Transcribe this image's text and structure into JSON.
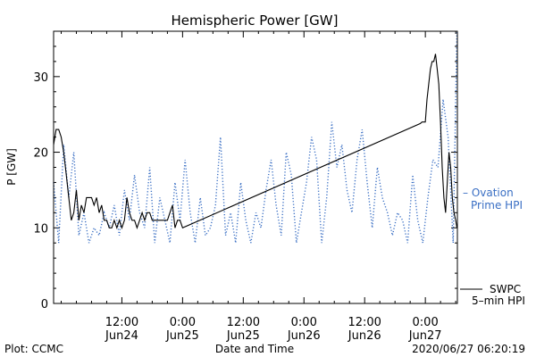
{
  "chart_data": {
    "type": "line",
    "title": "Hemispheric Power [GW]",
    "ylabel": "P [GW]",
    "xlabel": "Date and Time",
    "ylim": [
      0,
      36
    ],
    "xlim": [
      "2020-06-23T22:30",
      "2020-06-27T06:20"
    ],
    "y_ticks": [
      0,
      10,
      20,
      30
    ],
    "x_ticks": [
      {
        "t": "2020-06-24T12:00",
        "time": "12:00",
        "date": "Jun24"
      },
      {
        "t": "2020-06-25T00:00",
        "time": "0:00",
        "date": "Jun25"
      },
      {
        "t": "2020-06-25T12:00",
        "time": "12:00",
        "date": "Jun25"
      },
      {
        "t": "2020-06-26T00:00",
        "time": "0:00",
        "date": "Jun26"
      },
      {
        "t": "2020-06-26T12:00",
        "time": "12:00",
        "date": "Jun26"
      },
      {
        "t": "2020-06-27T00:00",
        "time": "0:00",
        "date": "Jun27"
      }
    ],
    "grid": false,
    "series": [
      {
        "name": "SWPC 5-min HPI",
        "label_lines": [
          "SWPC",
          "5–min HPI"
        ],
        "color": "#000000",
        "style": "solid",
        "x": [
          "2020-06-23T22:30",
          "2020-06-23T23:00",
          "2020-06-23T23:30",
          "2020-06-24T00:00",
          "2020-06-24T00:30",
          "2020-06-24T01:00",
          "2020-06-24T01:30",
          "2020-06-24T02:00",
          "2020-06-24T02:30",
          "2020-06-24T03:00",
          "2020-06-24T03:30",
          "2020-06-24T04:00",
          "2020-06-24T04:30",
          "2020-06-24T05:00",
          "2020-06-24T05:30",
          "2020-06-24T06:00",
          "2020-06-24T06:30",
          "2020-06-24T07:00",
          "2020-06-24T07:30",
          "2020-06-24T08:00",
          "2020-06-24T08:30",
          "2020-06-24T09:00",
          "2020-06-24T09:30",
          "2020-06-24T10:00",
          "2020-06-24T10:30",
          "2020-06-24T11:00",
          "2020-06-24T11:30",
          "2020-06-24T12:00",
          "2020-06-24T12:30",
          "2020-06-24T13:00",
          "2020-06-24T13:30",
          "2020-06-24T14:00",
          "2020-06-24T14:30",
          "2020-06-24T15:00",
          "2020-06-24T15:30",
          "2020-06-24T16:00",
          "2020-06-24T16:30",
          "2020-06-24T17:00",
          "2020-06-24T17:30",
          "2020-06-24T18:00",
          "2020-06-24T18:30",
          "2020-06-24T19:00",
          "2020-06-24T19:30",
          "2020-06-24T20:00",
          "2020-06-24T20:30",
          "2020-06-24T21:00",
          "2020-06-24T21:30",
          "2020-06-24T22:00",
          "2020-06-24T22:30",
          "2020-06-24T23:00",
          "2020-06-24T23:30",
          "2020-06-25T00:00",
          "2020-06-26T23:00",
          "2020-06-26T23:20",
          "2020-06-26T23:40",
          "2020-06-27T00:00",
          "2020-06-27T00:20",
          "2020-06-27T00:40",
          "2020-06-27T01:00",
          "2020-06-27T01:20",
          "2020-06-27T01:40",
          "2020-06-27T02:00",
          "2020-06-27T02:20",
          "2020-06-27T02:40",
          "2020-06-27T03:00",
          "2020-06-27T03:20",
          "2020-06-27T03:40",
          "2020-06-27T04:00",
          "2020-06-27T04:20",
          "2020-06-27T04:40",
          "2020-06-27T05:00",
          "2020-06-27T05:20",
          "2020-06-27T05:40",
          "2020-06-27T06:00",
          "2020-06-27T06:15"
        ],
        "y": [
          21,
          23,
          23,
          22,
          20,
          17,
          14,
          11,
          12,
          15,
          11,
          13,
          12,
          14,
          14,
          14,
          13,
          14,
          12,
          13,
          11,
          11,
          10,
          10,
          11,
          10,
          11,
          10,
          11,
          14,
          12,
          11,
          11,
          10,
          11,
          12,
          11,
          12,
          12,
          11,
          11,
          11,
          11,
          11,
          11,
          11,
          12,
          13,
          10,
          11,
          11,
          10,
          23.8,
          24,
          24,
          24,
          27,
          29,
          31,
          32,
          32,
          33,
          31,
          29,
          24,
          18,
          14,
          12,
          16,
          20,
          18,
          14,
          12,
          11,
          10
        ]
      },
      {
        "name": "Ovation Prime HPI",
        "label_lines": [
          "– Ovation",
          "Prime HPI"
        ],
        "color": "#3a6fc4",
        "style": "dotted",
        "x": [
          "2020-06-23T22:30",
          "2020-06-23T23:30",
          "2020-06-24T00:30",
          "2020-06-24T01:30",
          "2020-06-24T02:30",
          "2020-06-24T03:30",
          "2020-06-24T04:30",
          "2020-06-24T05:30",
          "2020-06-24T06:30",
          "2020-06-24T07:30",
          "2020-06-24T08:30",
          "2020-06-24T09:30",
          "2020-06-24T10:30",
          "2020-06-24T11:30",
          "2020-06-24T12:30",
          "2020-06-24T13:30",
          "2020-06-24T14:30",
          "2020-06-24T15:30",
          "2020-06-24T16:30",
          "2020-06-24T17:30",
          "2020-06-24T18:30",
          "2020-06-24T19:30",
          "2020-06-24T20:30",
          "2020-06-24T21:30",
          "2020-06-24T22:30",
          "2020-06-24T23:30",
          "2020-06-25T00:30",
          "2020-06-25T01:30",
          "2020-06-25T02:30",
          "2020-06-25T03:30",
          "2020-06-25T04:30",
          "2020-06-25T05:30",
          "2020-06-25T06:30",
          "2020-06-25T07:30",
          "2020-06-25T08:30",
          "2020-06-25T09:30",
          "2020-06-25T10:30",
          "2020-06-25T11:30",
          "2020-06-25T12:30",
          "2020-06-25T13:30",
          "2020-06-25T14:30",
          "2020-06-25T15:30",
          "2020-06-25T16:30",
          "2020-06-25T17:30",
          "2020-06-25T18:30",
          "2020-06-25T19:30",
          "2020-06-25T20:30",
          "2020-06-25T21:30",
          "2020-06-25T22:30",
          "2020-06-25T23:30",
          "2020-06-26T00:30",
          "2020-06-26T01:30",
          "2020-06-26T02:30",
          "2020-06-26T03:30",
          "2020-06-26T04:30",
          "2020-06-26T05:30",
          "2020-06-26T06:30",
          "2020-06-26T07:30",
          "2020-06-26T08:30",
          "2020-06-26T09:30",
          "2020-06-26T10:30",
          "2020-06-26T11:30",
          "2020-06-26T12:30",
          "2020-06-26T13:30",
          "2020-06-26T14:30",
          "2020-06-26T15:30",
          "2020-06-26T16:30",
          "2020-06-26T17:30",
          "2020-06-26T18:30",
          "2020-06-26T19:30",
          "2020-06-26T20:30",
          "2020-06-26T21:30",
          "2020-06-26T22:30",
          "2020-06-26T23:30",
          "2020-06-27T00:30",
          "2020-06-27T01:30",
          "2020-06-27T02:30",
          "2020-06-27T03:30",
          "2020-06-27T04:30",
          "2020-06-27T05:30",
          "2020-06-27T06:15"
        ],
        "y": [
          16,
          8,
          21,
          14,
          20,
          9,
          12,
          8,
          10,
          9,
          12,
          10,
          13,
          9,
          15,
          11,
          17,
          12,
          10,
          18,
          8,
          14,
          11,
          8,
          16,
          11,
          19,
          12,
          8,
          14,
          9,
          10,
          13,
          22,
          9,
          12,
          8,
          16,
          11,
          8,
          12,
          10,
          15,
          19,
          13,
          9,
          20,
          17,
          8,
          12,
          16,
          22,
          19,
          8,
          14,
          24,
          18,
          21,
          15,
          12,
          19,
          23,
          16,
          10,
          18,
          14,
          12,
          9,
          12,
          11,
          8,
          17,
          11,
          8,
          14,
          19,
          18,
          27,
          22,
          8,
          36
        ]
      }
    ]
  },
  "footer": {
    "left": "Plot: CCMC",
    "right": "2020/06/27 06:20:19"
  }
}
